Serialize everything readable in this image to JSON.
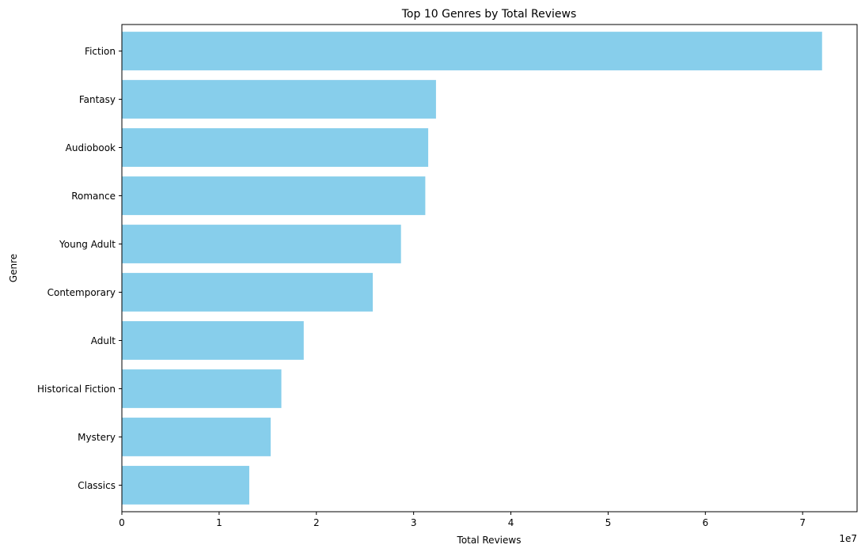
{
  "chart_data": {
    "type": "bar",
    "orientation": "horizontal",
    "title": "Top 10 Genres by Total Reviews",
    "xlabel": "Total Reviews",
    "ylabel": "Genre",
    "x_offset_label": "1e7",
    "x_scale": 10000000,
    "xlim": [
      0,
      75600000
    ],
    "xticks": [
      0,
      10000000,
      20000000,
      30000000,
      40000000,
      50000000,
      60000000,
      70000000
    ],
    "xtick_labels": [
      "0",
      "1",
      "2",
      "3",
      "4",
      "5",
      "6",
      "7"
    ],
    "categories": [
      "Fiction",
      "Fantasy",
      "Audiobook",
      "Romance",
      "Young Adult",
      "Contemporary",
      "Adult",
      "Historical Fiction",
      "Mystery",
      "Classics"
    ],
    "values": [
      72000000,
      32300000,
      31500000,
      31200000,
      28700000,
      25800000,
      18700000,
      16400000,
      15300000,
      13100000
    ],
    "bar_color": "#87ceeb",
    "grid": false,
    "legend": null
  }
}
